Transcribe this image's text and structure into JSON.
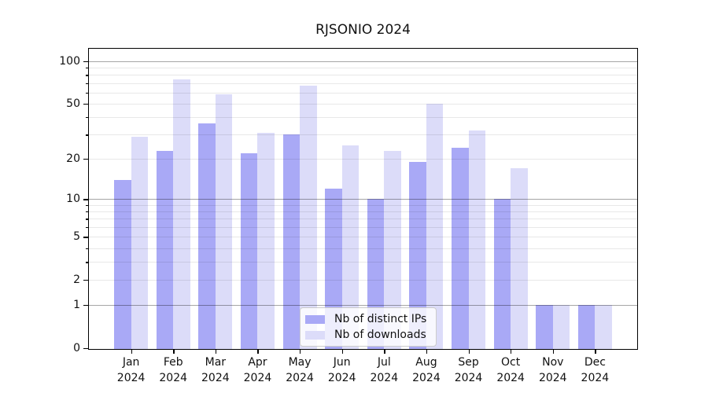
{
  "chart_data": {
    "type": "bar",
    "title": "RJSONIO 2024",
    "y_scale": "log10(value+1)",
    "categories": [
      "Jan 2024",
      "Feb 2024",
      "Mar 2024",
      "Apr 2024",
      "May 2024",
      "Jun 2024",
      "Jul 2024",
      "Aug 2024",
      "Sep 2024",
      "Oct 2024",
      "Nov 2024",
      "Dec 2024"
    ],
    "series": [
      {
        "name": "Nb of distinct IPs",
        "color": "#a9a9f6",
        "values": [
          14,
          23,
          36,
          22,
          30,
          12,
          10,
          19,
          24,
          10,
          1,
          1
        ]
      },
      {
        "name": "Nb of downloads",
        "color": "#dcdcf9",
        "values": [
          29,
          74,
          58,
          31,
          67,
          25,
          23,
          50,
          32,
          17,
          1,
          1
        ]
      }
    ],
    "y_axis": {
      "y_min": 0,
      "y_max": 124,
      "major_ticks": [
        0,
        1,
        2,
        5,
        10,
        20,
        50,
        100
      ],
      "decade_gridlines": [
        1,
        10,
        100
      ],
      "minor_gridlines": [
        3,
        4,
        6,
        7,
        8,
        9,
        30,
        40,
        60,
        70,
        80,
        90
      ],
      "grid": true
    },
    "legend_position": "bottom-center",
    "colors": {
      "background": "#ffffff",
      "frame": "#000000",
      "grid_decade": "rgba(0,0,0,0.35)",
      "grid_light": "rgba(0,0,0,0.09)"
    }
  }
}
